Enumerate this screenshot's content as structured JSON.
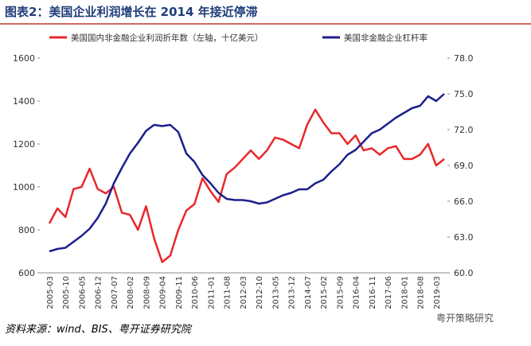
{
  "chart_data": {
    "type": "line",
    "title": "图表2：美国企业利润增长在 2014 年接近停滞",
    "categories": [
      "2005-03",
      null,
      "2005-10",
      null,
      "2006-05",
      null,
      "2006-12",
      null,
      "2007-07",
      null,
      "2008-02",
      null,
      "2008-09",
      null,
      "2009-04",
      null,
      "2009-11",
      null,
      "2010-06",
      null,
      "2011-01",
      null,
      "2011-08",
      null,
      "2012-03",
      null,
      "2012-10",
      null,
      "2013-05",
      null,
      "2013-12",
      null,
      "2014-07",
      null,
      "2015-02",
      null,
      "2015-09",
      null,
      "2016-04",
      null,
      "2016-11",
      null,
      "2017-06",
      null,
      "2018-01",
      null,
      "2018-08",
      null,
      "2019-03",
      null
    ],
    "series": [
      {
        "name": "美国国内非金融企业利润折年数（左轴，十亿美元）",
        "color": "#e8282b",
        "axis": "y",
        "values": [
          830,
          900,
          860,
          990,
          1000,
          1085,
          990,
          970,
          1000,
          880,
          870,
          800,
          910,
          760,
          650,
          680,
          800,
          890,
          920,
          1040,
          980,
          930,
          1060,
          1090,
          1130,
          1170,
          1130,
          1170,
          1230,
          1220,
          1200,
          1180,
          1290,
          1360,
          1300,
          1250,
          1250,
          1200,
          1240,
          1170,
          1180,
          1150,
          1180,
          1190,
          1130,
          1130,
          1150,
          1200,
          1100,
          1130
        ]
      },
      {
        "name": "美国非金融企业杠杆率",
        "color": "#1c1f8c",
        "axis": "y2",
        "values": [
          61.8,
          62.0,
          62.1,
          62.6,
          63.1,
          63.7,
          64.6,
          65.8,
          67.5,
          68.8,
          70.0,
          70.9,
          71.9,
          72.4,
          72.3,
          72.4,
          71.8,
          70.0,
          69.3,
          68.2,
          67.5,
          66.7,
          66.2,
          66.1,
          66.1,
          66.0,
          65.8,
          65.9,
          66.2,
          66.5,
          66.7,
          67.0,
          67.0,
          67.5,
          67.8,
          68.5,
          69.1,
          69.9,
          70.3,
          71.0,
          71.7,
          72.0,
          72.5,
          73.0,
          73.4,
          73.8,
          74.0,
          74.8,
          74.4,
          75.0
        ]
      }
    ],
    "ylim": [
      600,
      1600
    ],
    "yticks": [
      600,
      800,
      1000,
      1200,
      1400,
      1600
    ],
    "y2lim": [
      60,
      78
    ],
    "y2ticks": [
      {
        "value": 60,
        "label": "60.0"
      },
      {
        "value": 63,
        "label": "63.0"
      },
      {
        "value": 66,
        "label": "66.0"
      },
      {
        "value": 69,
        "label": "69.0"
      },
      {
        "value": 72,
        "label": "72.0"
      },
      {
        "value": 75,
        "label": "75.0"
      },
      {
        "value": 78,
        "label": "78.0"
      }
    ]
  },
  "source": "资料来源：wind、BIS、粤开证券研究院",
  "watermark": "粤开策略研究"
}
